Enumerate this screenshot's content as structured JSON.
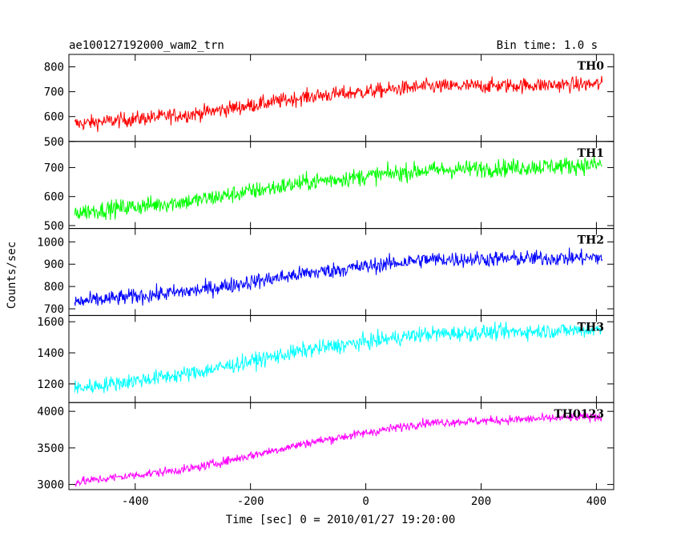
{
  "header": {
    "title": "ae100127192000_wam2_trn",
    "bin_time": "Bin time: 1.0 s"
  },
  "chart_data": {
    "type": "line",
    "title": "ae100127192000_wam2_trn",
    "xlabel": "Time [sec] 0 = 2010/01/27 19:20:00",
    "ylabel": "Counts/sec",
    "xlim": [
      -515,
      430
    ],
    "x_ticks": [
      "-400",
      "-200",
      "0",
      "200",
      "400"
    ],
    "x_tick_values": [
      -400,
      -200,
      0,
      200,
      400
    ],
    "x_range": [
      -505,
      410
    ],
    "grid": false,
    "panels": [
      {
        "name": "TH0",
        "color": "#ff0000",
        "ylim": [
          500,
          850
        ],
        "y_ticks": [
          "500",
          "600",
          "700",
          "800"
        ],
        "y_tick_values": [
          500,
          600,
          700,
          800
        ],
        "trend": [
          [
            -505,
            570
          ],
          [
            -300,
            610
          ],
          [
            -100,
            680
          ],
          [
            100,
            720
          ],
          [
            410,
            730
          ]
        ],
        "noise": 30
      },
      {
        "name": "TH1",
        "color": "#00ff00",
        "ylim": [
          490,
          790
        ],
        "y_ticks": [
          "500",
          "600",
          "700"
        ],
        "y_tick_values": [
          500,
          600,
          700
        ],
        "trend": [
          [
            -505,
            545
          ],
          [
            -300,
            585
          ],
          [
            -100,
            650
          ],
          [
            100,
            690
          ],
          [
            410,
            710
          ]
        ],
        "noise": 30
      },
      {
        "name": "TH2",
        "color": "#0000ff",
        "ylim": [
          670,
          1060
        ],
        "y_ticks": [
          "700",
          "800",
          "900",
          "1000"
        ],
        "y_tick_values": [
          700,
          800,
          900,
          1000
        ],
        "trend": [
          [
            -505,
            730
          ],
          [
            -300,
            780
          ],
          [
            -100,
            860
          ],
          [
            100,
            920
          ],
          [
            410,
            930
          ]
        ],
        "noise": 35
      },
      {
        "name": "TH3",
        "color": "#00ffff",
        "ylim": [
          1080,
          1640
        ],
        "y_ticks": [
          "1200",
          "1400",
          "1600"
        ],
        "y_tick_values": [
          1200,
          1400,
          1600
        ],
        "trend": [
          [
            -505,
            1170
          ],
          [
            -300,
            1270
          ],
          [
            -100,
            1420
          ],
          [
            100,
            1520
          ],
          [
            410,
            1550
          ]
        ],
        "noise": 50
      },
      {
        "name": "TH0123",
        "color": "#ff00ff",
        "ylim": [
          2930,
          4120
        ],
        "y_ticks": [
          "3000",
          "3500",
          "4000"
        ],
        "y_tick_values": [
          3000,
          3500,
          4000
        ],
        "trend": [
          [
            -505,
            3030
          ],
          [
            -300,
            3220
          ],
          [
            -100,
            3570
          ],
          [
            100,
            3840
          ],
          [
            410,
            3930
          ]
        ],
        "noise": 60
      }
    ]
  }
}
